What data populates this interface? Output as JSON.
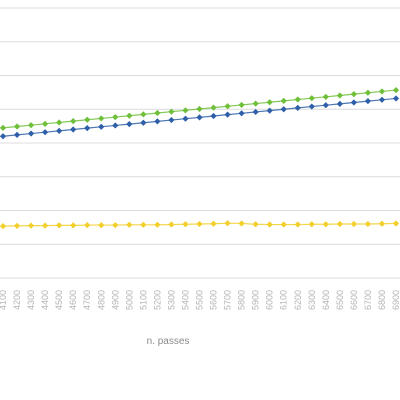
{
  "chart_data": {
    "type": "line",
    "xlabel": "n. passes",
    "ylabel": "",
    "title": "",
    "categories": [
      "4100",
      "4200",
      "4300",
      "4400",
      "4500",
      "4600",
      "4700",
      "4800",
      "4900",
      "5000",
      "5100",
      "5200",
      "5300",
      "5400",
      "5500",
      "5600",
      "5700",
      "5800",
      "5900",
      "6000",
      "6100",
      "6200",
      "6300",
      "6400",
      "6500",
      "6600",
      "6700",
      "6800",
      "6900"
    ],
    "ylim": [
      0,
      100
    ],
    "grid": true,
    "legend": "none",
    "colors": [
      "#6fbf3a",
      "#2e5fa8",
      "#f2cf2a"
    ],
    "series": [
      {
        "values": [
          55.6,
          56.1,
          56.6,
          57.1,
          57.6,
          58.1,
          58.6,
          59.1,
          59.6,
          60.1,
          60.6,
          61.1,
          61.6,
          62.1,
          62.6,
          63.1,
          63.6,
          64.1,
          64.6,
          65.1,
          65.6,
          66.1,
          66.6,
          67.1,
          67.6,
          68.1,
          68.6,
          69.1,
          69.6
        ]
      },
      {
        "values": [
          52.5,
          53.0,
          53.5,
          54.0,
          54.5,
          55.0,
          55.5,
          56.0,
          56.5,
          57.0,
          57.5,
          58.0,
          58.5,
          59.0,
          59.5,
          60.0,
          60.5,
          61.0,
          61.5,
          62.0,
          62.5,
          63.0,
          63.5,
          64.0,
          64.5,
          65.0,
          65.5,
          66.0,
          66.5
        ]
      },
      {
        "values": [
          19.2,
          19.3,
          19.4,
          19.4,
          19.5,
          19.5,
          19.6,
          19.6,
          19.6,
          19.7,
          19.7,
          19.7,
          19.8,
          19.9,
          20.0,
          20.1,
          20.3,
          20.2,
          19.9,
          19.8,
          19.8,
          19.8,
          19.9,
          19.9,
          20.0,
          20.0,
          20.0,
          20.1,
          20.2
        ]
      }
    ]
  }
}
